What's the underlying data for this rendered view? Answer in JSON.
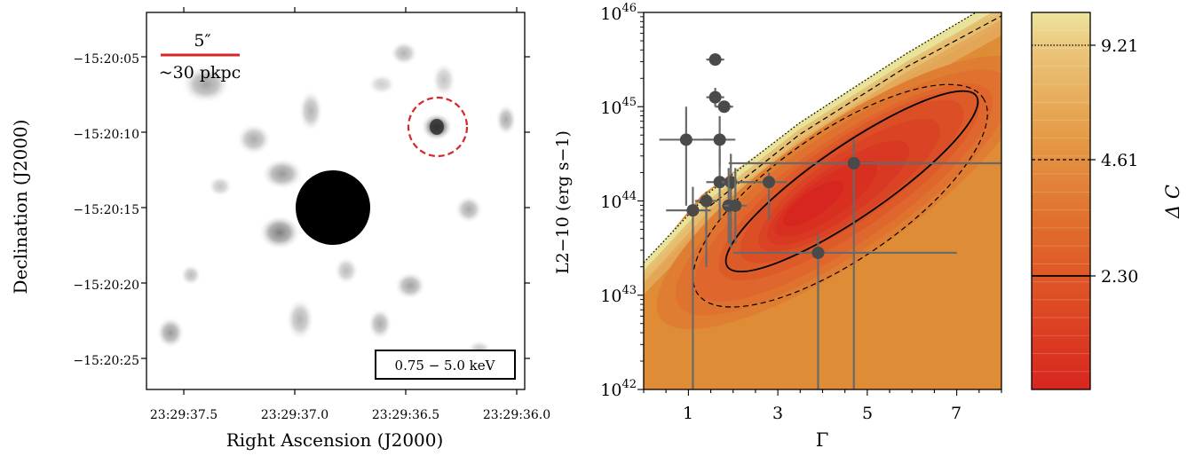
{
  "image_panel": {
    "scale_bar_label": "5″",
    "scale_bar_sublabel": "~30 pkpc",
    "band_label": "0.75 − 5.0 keV",
    "xlabel": "Right Ascension (J2000)",
    "ylabel": "Declination (J2000)",
    "x_ticks": [
      "23:29:37.5",
      "23:29:37.0",
      "23:29:36.5",
      "23:29:36.0"
    ],
    "y_ticks": [
      "−15:20:05",
      "−15:20:10",
      "−15:20:15",
      "−15:20:20",
      "−15:20:25"
    ],
    "colors": {
      "scale_bar": "#d62728",
      "circle": "#d62728",
      "source": "#000000"
    }
  },
  "chart_data": [
    {
      "type": "scatter",
      "xlabel": "Γ",
      "ylabel": "L2−10 (erg s−1)",
      "xlim": [
        0,
        8
      ],
      "ylim_log10": [
        42,
        46
      ],
      "y_scale": "log",
      "x_ticks": [
        "1",
        "3",
        "5",
        "7"
      ],
      "y_ticks": [
        {
          "base": "10",
          "exp": "42"
        },
        {
          "base": "10",
          "exp": "43"
        },
        {
          "base": "10",
          "exp": "44"
        },
        {
          "base": "10",
          "exp": "45"
        },
        {
          "base": "10",
          "exp": "46"
        }
      ],
      "points": [
        {
          "x": 1.6,
          "xerr": [
            0.2,
            0.2
          ],
          "log_y": 45.5,
          "yerr": [
            0.06,
            0.06
          ]
        },
        {
          "x": 1.6,
          "xerr": [
            0.2,
            0.2
          ],
          "log_y": 45.1,
          "yerr": [
            0.1,
            0.1
          ]
        },
        {
          "x": 1.8,
          "xerr": [
            0.2,
            0.2
          ],
          "log_y": 45.0,
          "yerr": [
            0.05,
            0.05
          ]
        },
        {
          "x": 1.7,
          "xerr": [
            0.35,
            0.35
          ],
          "log_y": 44.65,
          "yerr": [
            0.3,
            0.25
          ]
        },
        {
          "x": 0.95,
          "xerr": [
            0.6,
            0.6
          ],
          "log_y": 44.65,
          "yerr": [
            0.7,
            0.35
          ]
        },
        {
          "x": 1.7,
          "xerr": [
            0.3,
            0.4
          ],
          "log_y": 44.2,
          "yerr": [
            0.4,
            0.35
          ]
        },
        {
          "x": 1.95,
          "xerr": [
            0.2,
            0.4
          ],
          "log_y": 44.2,
          "yerr": [
            0.7,
            0.3
          ]
        },
        {
          "x": 2.8,
          "xerr": [
            0.45,
            0.4
          ],
          "log_y": 44.2,
          "yerr": [
            0.4,
            0.1
          ]
        },
        {
          "x": 4.7,
          "xerr": [
            2.8,
            3.4
          ],
          "log_y": 44.4,
          "yerr": [
            2.4,
            0.25
          ]
        },
        {
          "x": 1.4,
          "xerr": [
            0.25,
            0.25
          ],
          "log_y": 44.0,
          "yerr": [
            0.7,
            0.1
          ]
        },
        {
          "x": 1.1,
          "xerr": [
            0.6,
            0.4
          ],
          "log_y": 43.9,
          "yerr": [
            1.9,
            0.25
          ]
        },
        {
          "x": 1.9,
          "xerr": [
            0.15,
            0.2
          ],
          "log_y": 43.95,
          "yerr": [
            0.4,
            0.4
          ]
        },
        {
          "x": 2.05,
          "xerr": [
            0.25,
            0.25
          ],
          "log_y": 43.95,
          "yerr": [
            0.4,
            0.4
          ]
        },
        {
          "x": 3.9,
          "xerr": [
            1.9,
            3.1
          ],
          "log_y": 43.45,
          "yerr": [
            1.45,
            0.2
          ]
        }
      ],
      "contours": [
        {
          "level": 2.3,
          "style": "solid"
        },
        {
          "level": 4.61,
          "style": "dashed"
        },
        {
          "level": 9.21,
          "style": "dotted"
        }
      ],
      "colors": {
        "errorbar": "#696969",
        "point": "#4a4a4a",
        "background": "#de8c35",
        "core": "#d7261f",
        "edge": "#e8e29a"
      }
    },
    {
      "type": "colorbar",
      "label": "Δ C",
      "range": [
        0,
        10.5
      ],
      "ticks": [
        "2.30",
        "4.61",
        "9.21"
      ],
      "tick_values": [
        2.3,
        4.61,
        9.21
      ]
    }
  ]
}
